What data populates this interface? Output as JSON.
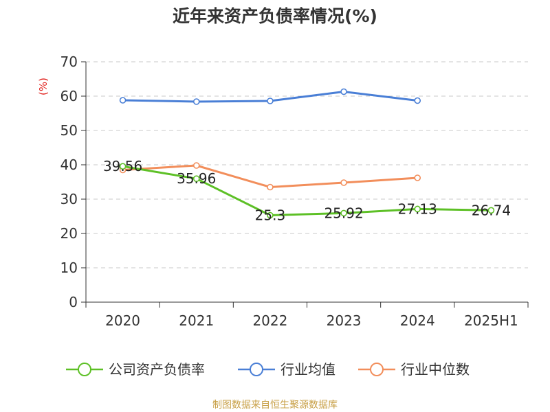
{
  "title": "近年来资产负债率情况(%)",
  "source": "制图数据来自恒生聚源数据库",
  "chart_data": {
    "type": "line",
    "categories": [
      "2020",
      "2021",
      "2022",
      "2023",
      "2024",
      "2025H1"
    ],
    "ylabel": "(%)",
    "ylim": [
      0,
      70
    ],
    "yticks": [
      0,
      10,
      20,
      30,
      40,
      50,
      60,
      70
    ],
    "grid": true,
    "legend_position": "bottom",
    "series": [
      {
        "name": "公司资产负债率",
        "color": "#5dc026",
        "values": [
          39.56,
          35.96,
          25.3,
          25.92,
          27.13,
          26.74
        ],
        "labels": [
          "39.56",
          "35.96",
          "25.3",
          "25.92",
          "27.13",
          "26.74"
        ]
      },
      {
        "name": "行业均值",
        "color": "#4a7fd6",
        "values": [
          58.8,
          58.4,
          58.6,
          61.3,
          58.7,
          null
        ]
      },
      {
        "name": "行业中位数",
        "color": "#f28e5b",
        "values": [
          38.5,
          39.8,
          33.5,
          34.8,
          36.2,
          null
        ]
      }
    ]
  }
}
